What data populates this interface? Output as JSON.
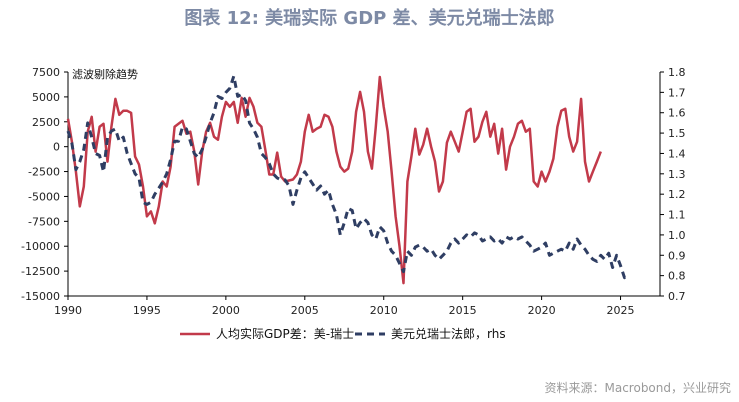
{
  "title": "图表 12: 美瑞实际 GDP 差、美元兑瑞士法郎",
  "source": "资料来源：Macrobond，兴业研究",
  "colors": {
    "series1": "#c23a4a",
    "series2": "#2f3e63"
  },
  "chart_data": {
    "type": "line",
    "annotation": "滤波剔除趋势",
    "x_ticks": [
      "1990",
      "1995",
      "2000",
      "2005",
      "2010",
      "2015",
      "2020",
      "2025"
    ],
    "xlim": [
      1990,
      2027.5
    ],
    "ylim_left": [
      -15000,
      7500
    ],
    "ylim_right": [
      0.7,
      1.8
    ],
    "y_ticks_left": [
      "7500",
      "5000",
      "2500",
      "0",
      "-2500",
      "-5000",
      "-7500",
      "-10000",
      "-12500",
      "-15000"
    ],
    "y_ticks_right": [
      "1.8",
      "1.7",
      "1.6",
      "1.5",
      "1.4",
      "1.3",
      "1.2",
      "1.1",
      "1.0",
      "0.9",
      "0.8",
      "0.7"
    ],
    "series": [
      {
        "name": "人均实际GDP差：美-瑞士",
        "axis": "left",
        "style": "solid",
        "points": [
          [
            1990.0,
            2800
          ],
          [
            1990.25,
            500
          ],
          [
            1990.5,
            -2500
          ],
          [
            1990.75,
            -6000
          ],
          [
            1991.0,
            -4000
          ],
          [
            1991.25,
            1500
          ],
          [
            1991.5,
            3000
          ],
          [
            1991.75,
            -500
          ],
          [
            1992.0,
            2000
          ],
          [
            1992.25,
            2300
          ],
          [
            1992.5,
            -1500
          ],
          [
            1992.75,
            2000
          ],
          [
            1993.0,
            4800
          ],
          [
            1993.25,
            3200
          ],
          [
            1993.5,
            3600
          ],
          [
            1993.75,
            3600
          ],
          [
            1994.0,
            3400
          ],
          [
            1994.25,
            -1000
          ],
          [
            1994.5,
            -1800
          ],
          [
            1994.75,
            -4000
          ],
          [
            1995.0,
            -7000
          ],
          [
            1995.25,
            -6500
          ],
          [
            1995.5,
            -7700
          ],
          [
            1995.75,
            -6000
          ],
          [
            1996.0,
            -3500
          ],
          [
            1996.25,
            -4000
          ],
          [
            1996.5,
            -2000
          ],
          [
            1996.75,
            2000
          ],
          [
            1997.0,
            2300
          ],
          [
            1997.25,
            2600
          ],
          [
            1997.5,
            1300
          ],
          [
            1997.75,
            1500
          ],
          [
            1998.0,
            -500
          ],
          [
            1998.25,
            -3800
          ],
          [
            1998.5,
            -500
          ],
          [
            1998.75,
            1500
          ],
          [
            1999.0,
            2400
          ],
          [
            1999.25,
            1000
          ],
          [
            1999.5,
            700
          ],
          [
            1999.75,
            3000
          ],
          [
            2000.0,
            4500
          ],
          [
            2000.25,
            4000
          ],
          [
            2000.5,
            4500
          ],
          [
            2000.75,
            2400
          ],
          [
            2001.0,
            4900
          ],
          [
            2001.25,
            3000
          ],
          [
            2001.5,
            4900
          ],
          [
            2001.75,
            4000
          ],
          [
            2002.0,
            2400
          ],
          [
            2002.25,
            2000
          ],
          [
            2002.5,
            -300
          ],
          [
            2002.75,
            -2800
          ],
          [
            2003.0,
            -2800
          ],
          [
            2003.25,
            -600
          ],
          [
            2003.5,
            -3000
          ],
          [
            2003.75,
            -3500
          ],
          [
            2004.0,
            -3400
          ],
          [
            2004.25,
            -3300
          ],
          [
            2004.5,
            -2800
          ],
          [
            2004.75,
            -1500
          ],
          [
            2005.0,
            1500
          ],
          [
            2005.25,
            3200
          ],
          [
            2005.5,
            1500
          ],
          [
            2005.75,
            1800
          ],
          [
            2006.0,
            2000
          ],
          [
            2006.25,
            3200
          ],
          [
            2006.5,
            3000
          ],
          [
            2006.75,
            2000
          ],
          [
            2007.0,
            -500
          ],
          [
            2007.25,
            -2000
          ],
          [
            2007.5,
            -2500
          ],
          [
            2007.75,
            -2200
          ],
          [
            2008.0,
            -500
          ],
          [
            2008.25,
            3500
          ],
          [
            2008.5,
            5500
          ],
          [
            2008.75,
            3500
          ],
          [
            2009.0,
            -500
          ],
          [
            2009.25,
            -2200
          ],
          [
            2009.5,
            2000
          ],
          [
            2009.75,
            7000
          ],
          [
            2010.0,
            4000
          ],
          [
            2010.25,
            1500
          ],
          [
            2010.5,
            -2500
          ],
          [
            2010.75,
            -7000
          ],
          [
            2011.0,
            -10000
          ],
          [
            2011.25,
            -13700
          ],
          [
            2011.5,
            -3500
          ],
          [
            2011.75,
            -1000
          ],
          [
            2012.0,
            1800
          ],
          [
            2012.25,
            -800
          ],
          [
            2012.5,
            200
          ],
          [
            2012.75,
            1800
          ],
          [
            2013.0,
            0
          ],
          [
            2013.25,
            -1500
          ],
          [
            2013.5,
            -4500
          ],
          [
            2013.75,
            -3500
          ],
          [
            2014.0,
            400
          ],
          [
            2014.25,
            1500
          ],
          [
            2014.5,
            500
          ],
          [
            2014.75,
            -500
          ],
          [
            2015.0,
            1500
          ],
          [
            2015.25,
            3500
          ],
          [
            2015.5,
            3800
          ],
          [
            2015.75,
            500
          ],
          [
            2016.0,
            1000
          ],
          [
            2016.25,
            2500
          ],
          [
            2016.5,
            3500
          ],
          [
            2016.75,
            1000
          ],
          [
            2017.0,
            2300
          ],
          [
            2017.25,
            -700
          ],
          [
            2017.5,
            1800
          ],
          [
            2017.75,
            -2300
          ],
          [
            2018.0,
            0
          ],
          [
            2018.25,
            1000
          ],
          [
            2018.5,
            2300
          ],
          [
            2018.75,
            2600
          ],
          [
            2019.0,
            1500
          ],
          [
            2019.25,
            1800
          ],
          [
            2019.5,
            -3500
          ],
          [
            2019.75,
            -4000
          ],
          [
            2020.0,
            -2500
          ],
          [
            2020.25,
            -3500
          ],
          [
            2020.5,
            -2500
          ],
          [
            2020.75,
            -1200
          ],
          [
            2021.0,
            2000
          ],
          [
            2021.25,
            3600
          ],
          [
            2021.5,
            3800
          ],
          [
            2021.75,
            1000
          ],
          [
            2022.0,
            -500
          ],
          [
            2022.25,
            500
          ],
          [
            2022.5,
            4800
          ],
          [
            2022.75,
            -1500
          ],
          [
            2023.0,
            -3500
          ],
          [
            2023.25,
            -2500
          ],
          [
            2023.5,
            -1500
          ],
          [
            2023.75,
            -500
          ]
        ]
      },
      {
        "name": "美元兑瑞士法郎，rhs",
        "axis": "right",
        "style": "dashed",
        "points": [
          [
            1990.0,
            1.51
          ],
          [
            1990.25,
            1.45
          ],
          [
            1990.5,
            1.32
          ],
          [
            1990.75,
            1.36
          ],
          [
            1991.0,
            1.42
          ],
          [
            1991.25,
            1.55
          ],
          [
            1991.5,
            1.48
          ],
          [
            1991.75,
            1.4
          ],
          [
            1992.0,
            1.39
          ],
          [
            1992.25,
            1.31
          ],
          [
            1992.5,
            1.48
          ],
          [
            1992.75,
            1.51
          ],
          [
            1993.0,
            1.52
          ],
          [
            1993.25,
            1.46
          ],
          [
            1993.5,
            1.48
          ],
          [
            1993.75,
            1.4
          ],
          [
            1994.0,
            1.35
          ],
          [
            1994.25,
            1.3
          ],
          [
            1994.5,
            1.28
          ],
          [
            1994.75,
            1.16
          ],
          [
            1995.0,
            1.15
          ],
          [
            1995.25,
            1.16
          ],
          [
            1995.5,
            1.2
          ],
          [
            1995.75,
            1.23
          ],
          [
            1996.0,
            1.26
          ],
          [
            1996.25,
            1.3
          ],
          [
            1996.5,
            1.37
          ],
          [
            1996.75,
            1.46
          ],
          [
            1997.0,
            1.46
          ],
          [
            1997.25,
            1.53
          ],
          [
            1997.5,
            1.52
          ],
          [
            1997.75,
            1.46
          ],
          [
            1998.0,
            1.4
          ],
          [
            1998.25,
            1.38
          ],
          [
            1998.5,
            1.42
          ],
          [
            1998.75,
            1.48
          ],
          [
            1999.0,
            1.55
          ],
          [
            1999.25,
            1.6
          ],
          [
            1999.5,
            1.68
          ],
          [
            1999.75,
            1.67
          ],
          [
            2000.0,
            1.7
          ],
          [
            2000.25,
            1.72
          ],
          [
            2000.5,
            1.78
          ],
          [
            2000.75,
            1.68
          ],
          [
            2001.0,
            1.69
          ],
          [
            2001.25,
            1.66
          ],
          [
            2001.5,
            1.55
          ],
          [
            2001.75,
            1.52
          ],
          [
            2002.0,
            1.48
          ],
          [
            2002.25,
            1.4
          ],
          [
            2002.5,
            1.38
          ],
          [
            2002.75,
            1.35
          ],
          [
            2003.0,
            1.3
          ],
          [
            2003.25,
            1.28
          ],
          [
            2003.5,
            1.27
          ],
          [
            2003.75,
            1.27
          ],
          [
            2004.0,
            1.24
          ],
          [
            2004.25,
            1.15
          ],
          [
            2004.5,
            1.22
          ],
          [
            2004.75,
            1.28
          ],
          [
            2005.0,
            1.31
          ],
          [
            2005.25,
            1.28
          ],
          [
            2005.5,
            1.25
          ],
          [
            2005.75,
            1.22
          ],
          [
            2006.0,
            1.24
          ],
          [
            2006.25,
            1.2
          ],
          [
            2006.5,
            1.22
          ],
          [
            2006.75,
            1.15
          ],
          [
            2007.0,
            1.1
          ],
          [
            2007.25,
            1.0
          ],
          [
            2007.5,
            1.06
          ],
          [
            2007.75,
            1.13
          ],
          [
            2008.0,
            1.12
          ],
          [
            2008.25,
            1.03
          ],
          [
            2008.5,
            1.06
          ],
          [
            2008.75,
            1.08
          ],
          [
            2009.0,
            1.06
          ],
          [
            2009.25,
            1.0
          ],
          [
            2009.5,
            0.98
          ],
          [
            2009.75,
            1.04
          ],
          [
            2010.0,
            1.02
          ],
          [
            2010.25,
            0.96
          ],
          [
            2010.5,
            0.92
          ],
          [
            2010.75,
            0.9
          ],
          [
            2011.0,
            0.86
          ],
          [
            2011.25,
            0.82
          ],
          [
            2011.5,
            0.92
          ],
          [
            2011.75,
            0.9
          ],
          [
            2012.0,
            0.94
          ],
          [
            2012.25,
            0.95
          ],
          [
            2012.5,
            0.94
          ],
          [
            2012.75,
            0.92
          ],
          [
            2013.0,
            0.93
          ],
          [
            2013.25,
            0.9
          ],
          [
            2013.5,
            0.88
          ],
          [
            2013.75,
            0.9
          ],
          [
            2014.0,
            0.92
          ],
          [
            2014.25,
            0.96
          ],
          [
            2014.5,
            0.98
          ],
          [
            2014.75,
            0.96
          ],
          [
            2015.0,
            0.98
          ],
          [
            2015.25,
            1.0
          ],
          [
            2015.5,
            0.99
          ],
          [
            2015.75,
            1.01
          ],
          [
            2016.0,
            1.0
          ],
          [
            2016.25,
            0.97
          ],
          [
            2016.5,
            0.98
          ],
          [
            2016.75,
            0.99
          ],
          [
            2017.0,
            0.97
          ],
          [
            2017.25,
            0.98
          ],
          [
            2017.5,
            0.96
          ],
          [
            2017.75,
            0.99
          ],
          [
            2018.0,
            0.98
          ],
          [
            2018.25,
            0.99
          ],
          [
            2018.5,
            0.98
          ],
          [
            2018.75,
            0.99
          ],
          [
            2019.0,
            0.97
          ],
          [
            2019.25,
            0.95
          ],
          [
            2019.5,
            0.92
          ],
          [
            2019.75,
            0.93
          ],
          [
            2020.0,
            0.94
          ],
          [
            2020.25,
            0.96
          ],
          [
            2020.5,
            0.9
          ],
          [
            2020.75,
            0.91
          ],
          [
            2021.0,
            0.92
          ],
          [
            2021.25,
            0.93
          ],
          [
            2021.5,
            0.92
          ],
          [
            2021.75,
            0.96
          ],
          [
            2022.0,
            0.93
          ],
          [
            2022.25,
            0.98
          ],
          [
            2022.5,
            0.95
          ],
          [
            2022.75,
            0.93
          ],
          [
            2023.0,
            0.9
          ],
          [
            2023.25,
            0.88
          ],
          [
            2023.5,
            0.87
          ],
          [
            2023.75,
            0.9
          ],
          [
            2024.0,
            0.88
          ],
          [
            2024.25,
            0.91
          ],
          [
            2024.5,
            0.84
          ],
          [
            2024.75,
            0.9
          ],
          [
            2025.0,
            0.85
          ],
          [
            2025.25,
            0.79
          ],
          [
            2025.5,
            0.8
          ]
        ]
      }
    ]
  }
}
